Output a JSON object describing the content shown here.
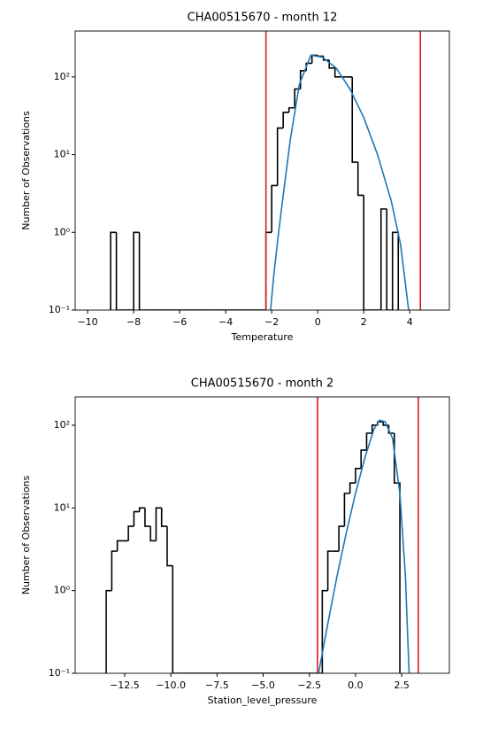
{
  "chart_data": [
    {
      "type": "histogram",
      "title": "CHA00515670 - month 12",
      "xlabel": "Temperature",
      "ylabel": "Number of Observations",
      "bins": [
        -9,
        -8.75,
        -8.5,
        -8.25,
        -8,
        -7.75,
        -7.5,
        -7.25,
        -7,
        -6.75,
        -6.5,
        -6.25,
        -6,
        -5.75,
        -5.5,
        -5.25,
        -5,
        -4.75,
        -4.5,
        -4.25,
        -4,
        -3.75,
        -3.5,
        -3.25,
        -3,
        -2.75,
        -2.5,
        -2.25,
        -2,
        -1.75,
        -1.5,
        -1.25,
        -1,
        -0.75,
        -0.5,
        -0.25,
        0,
        0.25,
        0.5,
        0.75,
        1,
        1.25,
        1.5,
        1.75,
        2,
        2.25,
        2.5,
        2.75,
        3,
        3.25,
        3.5
      ],
      "counts": [
        1,
        0,
        0,
        0,
        1,
        0,
        0,
        0,
        0,
        0,
        0,
        0,
        0,
        0,
        0,
        0,
        0,
        0,
        0,
        0,
        0,
        0,
        0,
        0,
        0,
        0,
        0,
        1,
        4,
        22,
        35,
        40,
        70,
        120,
        150,
        190,
        185,
        165,
        130,
        100,
        100,
        100,
        8,
        3,
        0,
        0,
        0,
        2,
        0,
        1
      ],
      "color": "#000000",
      "fit": {
        "x": [
          -2.05,
          -1.9,
          -1.7,
          -1.5,
          -1.2,
          -0.8,
          -0.3,
          0.2,
          0.8,
          1.4,
          2.0,
          2.6,
          3.2,
          3.6,
          3.95
        ],
        "y": [
          0.1,
          0.3,
          1,
          3,
          15,
          80,
          190,
          180,
          130,
          70,
          30,
          10,
          2.5,
          0.7,
          0.1
        ],
        "color": "#1f77b4"
      },
      "vlines": {
        "values": [
          -2.25,
          4.46
        ],
        "color": "#e31a1c"
      },
      "log_y": true,
      "xlim": [
        -10.54,
        5.72
      ],
      "ylim": [
        0.1,
        390
      ],
      "xticks": [
        {
          "value": -10,
          "label": "−10"
        },
        {
          "value": -8,
          "label": "−8"
        },
        {
          "value": -6,
          "label": "−6"
        },
        {
          "value": -4,
          "label": "−4"
        },
        {
          "value": -2,
          "label": "−2"
        },
        0,
        2,
        4
      ],
      "yticks": [
        {
          "value": 0.1,
          "label": "10⁻¹"
        },
        {
          "value": 1,
          "label": "10⁰"
        },
        {
          "value": 10,
          "label": "10¹"
        },
        {
          "value": 100,
          "label": "10²"
        }
      ]
    },
    {
      "type": "histogram",
      "title": "CHA00515670 - month 2",
      "xlabel": "Station_level_pressure",
      "ylabel": "Number of Observations",
      "bins": [
        -13.5,
        -13.2,
        -12.9,
        -12.6,
        -12.3,
        -12.0,
        -11.7,
        -11.4,
        -11.1,
        -10.8,
        -10.5,
        -10.2,
        -9.9,
        -9.6,
        -9.3,
        -9.0,
        -8.7,
        -8.4,
        -8.1,
        -7.8,
        -7.5,
        -7.2,
        -6.9,
        -6.6,
        -6.3,
        -6.0,
        -5.7,
        -5.4,
        -5.1,
        -4.8,
        -4.5,
        -4.2,
        -3.9,
        -3.6,
        -3.3,
        -3.0,
        -2.7,
        -2.4,
        -2.1,
        -1.8,
        -1.5,
        -1.2,
        -0.9,
        -0.6,
        -0.3,
        0,
        0.3,
        0.6,
        0.9,
        1.2,
        1.5,
        1.8,
        2.1,
        2.4
      ],
      "counts": [
        1,
        3,
        4,
        4,
        6,
        9,
        10,
        6,
        4,
        10,
        6,
        2,
        0,
        0,
        0,
        0,
        0,
        0,
        0,
        0,
        0,
        0,
        0,
        0,
        0,
        0,
        0,
        0,
        0,
        0,
        0,
        0,
        0,
        0,
        0,
        0,
        0,
        0,
        0,
        1,
        3,
        3,
        6,
        15,
        20,
        30,
        50,
        80,
        100,
        110,
        100,
        80,
        20
      ],
      "color": "#000000",
      "fit": {
        "x": [
          -2.0,
          -1.5,
          -1.0,
          -0.5,
          0,
          0.5,
          1.0,
          1.3,
          1.6,
          2.0,
          2.4,
          2.7,
          2.9
        ],
        "y": [
          0.1,
          0.4,
          1.5,
          5,
          15,
          40,
          90,
          115,
          110,
          70,
          15,
          1.5,
          0.1
        ],
        "color": "#1f77b4"
      },
      "vlines": {
        "values": [
          -2.06,
          3.4
        ],
        "color": "#e31a1c"
      },
      "log_y": true,
      "xlim": [
        -15.18,
        5.08
      ],
      "ylim": [
        0.1,
        220
      ],
      "xticks": [
        {
          "value": -12.5,
          "label": "−12.5"
        },
        {
          "value": -10,
          "label": "−10.0"
        },
        {
          "value": -7.5,
          "label": "−7.5"
        },
        {
          "value": -5,
          "label": "−5.0"
        },
        {
          "value": -2.5,
          "label": "−2.5"
        },
        {
          "value": 0,
          "label": "0.0"
        },
        2.5
      ],
      "yticks": [
        {
          "value": 0.1,
          "label": "10⁻¹"
        },
        {
          "value": 1,
          "label": "10⁰"
        },
        {
          "value": 10,
          "label": "10¹"
        },
        {
          "value": 100,
          "label": "10²"
        }
      ]
    }
  ]
}
